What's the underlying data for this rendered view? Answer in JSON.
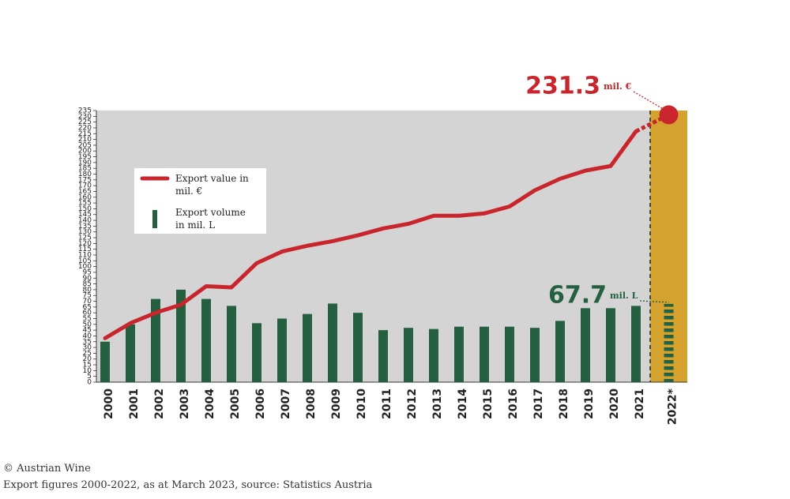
{
  "chart_data": {
    "type": "bar-line",
    "categories": [
      "2000",
      "2001",
      "2002",
      "2003",
      "2004",
      "2005",
      "2006",
      "2007",
      "2008",
      "2009",
      "2010",
      "2011",
      "2012",
      "2013",
      "2014",
      "2015",
      "2016",
      "2017",
      "2018",
      "2019",
      "2020",
      "2021",
      "2022*"
    ],
    "series": [
      {
        "name": "Export value in mil. €",
        "type": "line",
        "color": "#c8262c",
        "values": [
          38,
          51,
          60,
          67,
          83,
          82,
          103,
          113,
          118,
          122,
          127,
          133,
          137,
          144,
          144,
          146,
          152,
          166,
          176,
          183,
          187,
          217,
          231.3
        ],
        "value_labels": [
          null,
          null,
          null,
          null,
          null,
          null,
          null,
          null,
          null,
          null,
          null,
          null,
          null,
          null,
          null,
          null,
          null,
          null,
          null,
          null,
          null,
          null,
          "231.3"
        ],
        "value_label_unit": "mil. €"
      },
      {
        "name": "Export volume in mil. L",
        "type": "bar",
        "color": "#24603f",
        "values": [
          35,
          50,
          72,
          80,
          72,
          66,
          51,
          55,
          59,
          68,
          60,
          45,
          47,
          46,
          48,
          48,
          48,
          47,
          53,
          64,
          64,
          66,
          67.7
        ],
        "value_labels": [
          null,
          null,
          null,
          null,
          null,
          null,
          null,
          null,
          null,
          null,
          null,
          null,
          null,
          null,
          null,
          null,
          null,
          null,
          null,
          null,
          null,
          null,
          "67.7"
        ],
        "value_label_unit": "mil. L"
      }
    ],
    "ylim": [
      0,
      235
    ],
    "yticks": [
      0,
      5,
      10,
      15,
      20,
      25,
      30,
      35,
      40,
      45,
      50,
      55,
      60,
      65,
      70,
      75,
      80,
      85,
      90,
      95,
      100,
      105,
      110,
      115,
      120,
      125,
      130,
      135,
      140,
      145,
      150,
      155,
      160,
      165,
      170,
      175,
      180,
      185,
      190,
      195,
      200,
      205,
      210,
      215,
      220,
      225,
      230,
      235
    ],
    "highlight_last": true,
    "background": "#d4d4d5",
    "highlight_color": "#d4a32f",
    "footer": [
      "© Austrian Wine",
      "Export figures 2000-2022, as at March 2023, source: Statistics Austria"
    ]
  }
}
